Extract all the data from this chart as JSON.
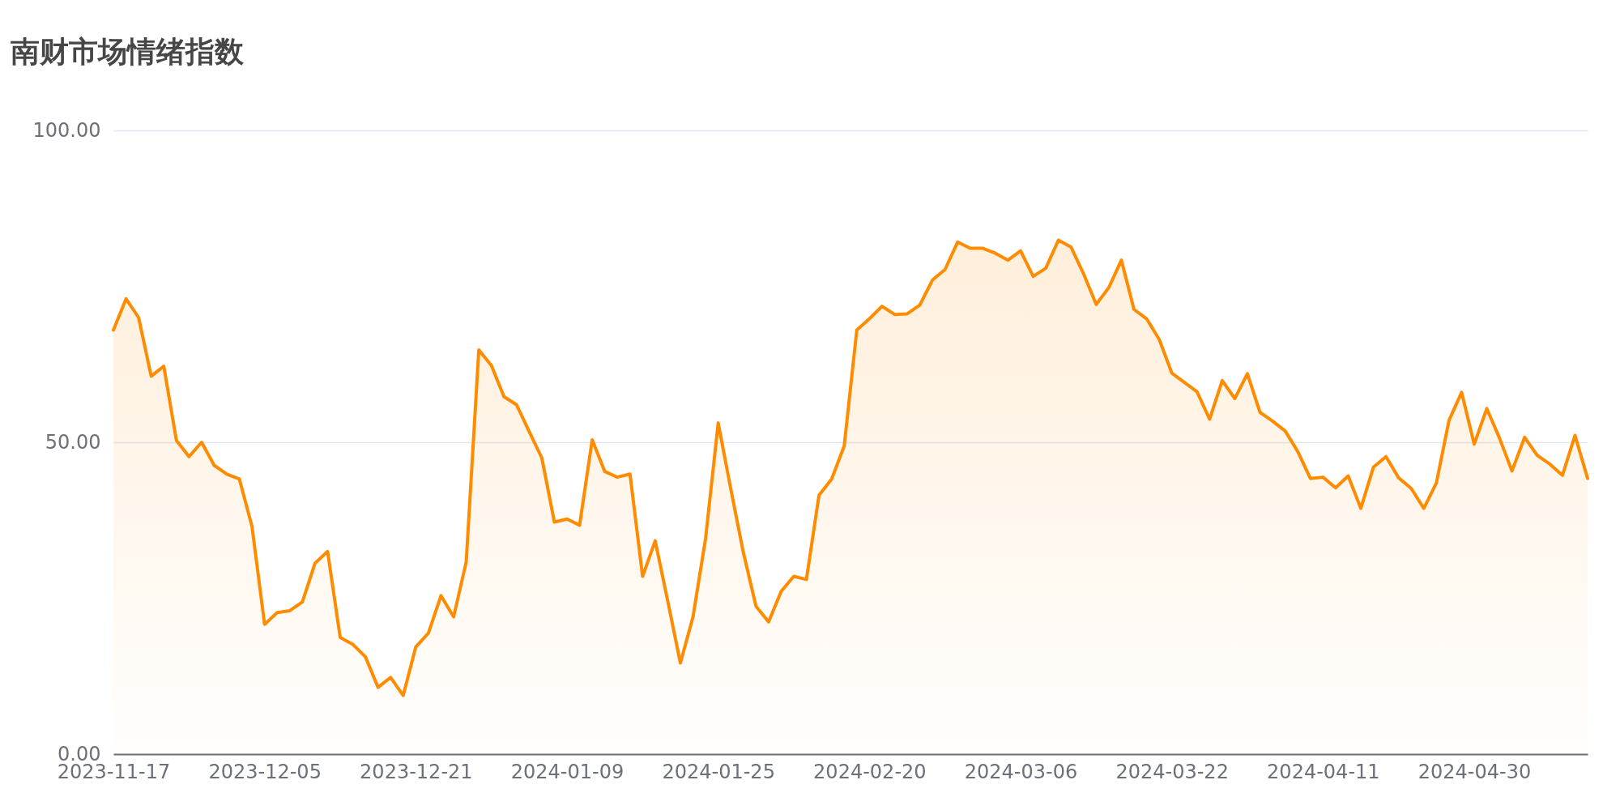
{
  "chart_data": {
    "type": "area",
    "title": "南财市场情绪指数",
    "categories": [
      "2023-11-17",
      null,
      null,
      null,
      null,
      null,
      null,
      null,
      null,
      null,
      null,
      null,
      "2023-12-05",
      null,
      null,
      null,
      null,
      null,
      null,
      null,
      null,
      null,
      null,
      null,
      "2023-12-21",
      null,
      null,
      null,
      null,
      null,
      null,
      null,
      null,
      null,
      null,
      null,
      "2024-01-09",
      null,
      null,
      null,
      null,
      null,
      null,
      null,
      null,
      null,
      null,
      null,
      "2024-01-25",
      null,
      null,
      null,
      null,
      null,
      null,
      null,
      null,
      null,
      null,
      null,
      "2024-02-20",
      null,
      null,
      null,
      null,
      null,
      null,
      null,
      null,
      null,
      null,
      null,
      "2024-03-06",
      null,
      null,
      null,
      null,
      null,
      null,
      null,
      null,
      null,
      null,
      null,
      "2024-03-22",
      null,
      null,
      null,
      null,
      null,
      null,
      null,
      null,
      null,
      null,
      null,
      "2024-04-11",
      null,
      null,
      null,
      null,
      null,
      null,
      null,
      null,
      null,
      null,
      null,
      "2024-04-30",
      null,
      null,
      null,
      null,
      null,
      null,
      null,
      null,
      null
    ],
    "series": [
      {
        "color": "#ff8c00",
        "values": [
          68.0,
          73.0,
          70.0,
          60.6,
          62.2,
          50.3,
          47.7,
          50.0,
          46.3,
          44.9,
          44.1,
          36.5,
          20.8,
          22.7,
          23.0,
          24.4,
          30.6,
          32.5,
          18.7,
          17.6,
          15.6,
          10.7,
          12.3,
          9.4,
          17.2,
          19.4,
          25.4,
          22.0,
          30.8,
          64.8,
          62.3,
          57.3,
          56.0,
          51.7,
          47.5,
          37.2,
          37.7,
          36.7,
          50.4,
          45.3,
          44.4,
          44.9,
          28.5,
          34.2,
          24.5,
          14.6,
          22.0,
          34.6,
          53.1,
          42.5,
          32.3,
          23.7,
          21.2,
          26.1,
          28.5,
          28.0,
          41.5,
          44.1,
          49.4,
          68.0,
          69.8,
          71.8,
          70.5,
          70.6,
          72.0,
          76.0,
          77.7,
          82.1,
          81.1,
          81.1,
          80.3,
          79.2,
          80.7,
          76.6,
          77.9,
          82.4,
          81.3,
          77.0,
          72.1,
          74.8,
          79.2,
          71.3,
          69.8,
          66.5,
          61.1,
          59.6,
          58.1,
          53.7,
          59.9,
          57.0,
          61.0,
          54.8,
          53.4,
          51.8,
          48.5,
          44.2,
          44.4,
          42.7,
          44.6,
          39.4,
          46.0,
          47.7,
          44.3,
          42.6,
          39.4,
          43.5,
          53.5,
          58.0,
          49.7,
          55.4,
          50.7,
          45.4,
          50.8,
          47.9,
          46.5,
          44.7,
          51.1,
          44.2
        ]
      }
    ],
    "ylim": [
      0,
      100
    ],
    "yticks": [
      {
        "value": 0,
        "label": "0.00"
      },
      {
        "value": 50,
        "label": "50.00"
      },
      {
        "value": 100,
        "label": "100.00"
      }
    ],
    "grid": "y"
  }
}
